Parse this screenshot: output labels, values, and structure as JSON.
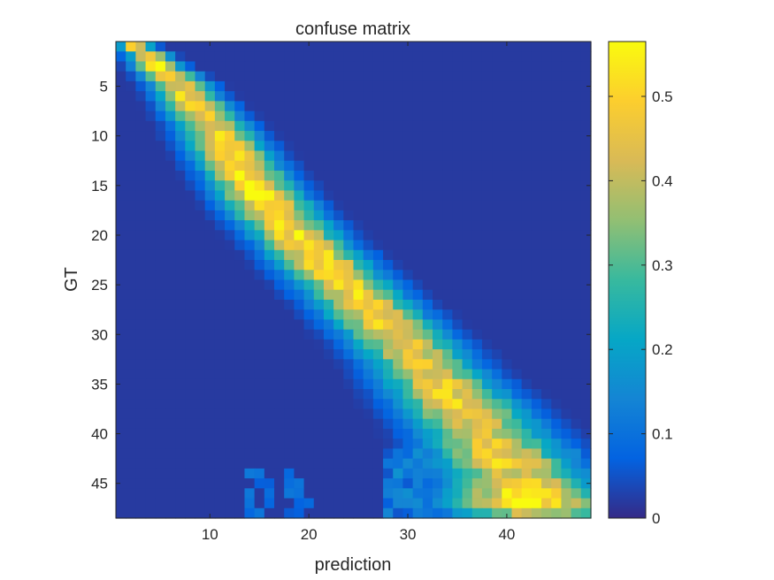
{
  "chart_data": {
    "type": "heatmap",
    "title": "confuse matrix",
    "xlabel": "prediction",
    "ylabel": "GT",
    "rows": 48,
    "cols": 48,
    "xlim": [
      0.5,
      48.5
    ],
    "ylim": [
      0.5,
      48.5
    ],
    "x_ticks": [
      10,
      20,
      30,
      40
    ],
    "y_ticks": [
      5,
      10,
      15,
      20,
      25,
      30,
      35,
      40,
      45
    ],
    "y_reversed": true,
    "colormap": "parula",
    "colormap_stops": [
      "#352a87",
      "#0363e1",
      "#1485d4",
      "#06a7c6",
      "#38b99e",
      "#92bf73",
      "#d9ba56",
      "#fcce2e",
      "#f9fb0e"
    ],
    "clim": [
      0,
      0.565
    ],
    "colorbar": {
      "ticks": [
        0,
        0.1,
        0.2,
        0.3,
        0.4,
        0.5
      ],
      "tick_labels": [
        "0",
        "0.1",
        "0.2",
        "0.3",
        "0.4",
        "0.5"
      ]
    },
    "peak_column_by_row": [
      2.5,
      3.8,
      4.8,
      6,
      7,
      7.8,
      8.6,
      9.4,
      10.2,
      10.9,
      11.6,
      12.3,
      13,
      13.7,
      14.4,
      15.1,
      15.9,
      16.7,
      17.6,
      18.6,
      19.6,
      20.6,
      21.6,
      22.6,
      23.6,
      24.6,
      25.6,
      26.6,
      27.6,
      28.6,
      29.6,
      30.5,
      31.4,
      32.3,
      33.2,
      34.1,
      35,
      35.9,
      36.8,
      37.6,
      38.4,
      39.2,
      40,
      40.7,
      41.3,
      41.8,
      42.2,
      42.5
    ],
    "peak_value_by_row": [
      0.48,
      0.5,
      0.53,
      0.5,
      0.47,
      0.5,
      0.5,
      0.5,
      0.49,
      0.5,
      0.52,
      0.53,
      0.52,
      0.54,
      0.55,
      0.55,
      0.56,
      0.52,
      0.53,
      0.53,
      0.53,
      0.52,
      0.53,
      0.5,
      0.5,
      0.5,
      0.49,
      0.49,
      0.49,
      0.48,
      0.47,
      0.47,
      0.46,
      0.45,
      0.47,
      0.48,
      0.5,
      0.5,
      0.46,
      0.45,
      0.46,
      0.48,
      0.5,
      0.45,
      0.5,
      0.52,
      0.56,
      0.4
    ],
    "diagonal_spread_by_row": [
      1.2,
      1.4,
      1.6,
      1.8,
      2,
      2.1,
      2.2,
      2.3,
      2.4,
      2.5,
      2.6,
      2.6,
      2.7,
      2.7,
      2.8,
      2.8,
      2.9,
      2.9,
      3,
      3,
      3,
      3.1,
      3.1,
      3.2,
      3.2,
      3.3,
      3.3,
      3.4,
      3.4,
      3.5,
      3.5,
      3.6,
      3.6,
      3.7,
      3.8,
      3.9,
      4,
      4.1,
      4.2,
      4.3,
      4.4,
      4.5,
      4.6,
      4.8,
      5,
      5.2,
      5.4,
      5.6
    ],
    "background_level": 0.02
  }
}
